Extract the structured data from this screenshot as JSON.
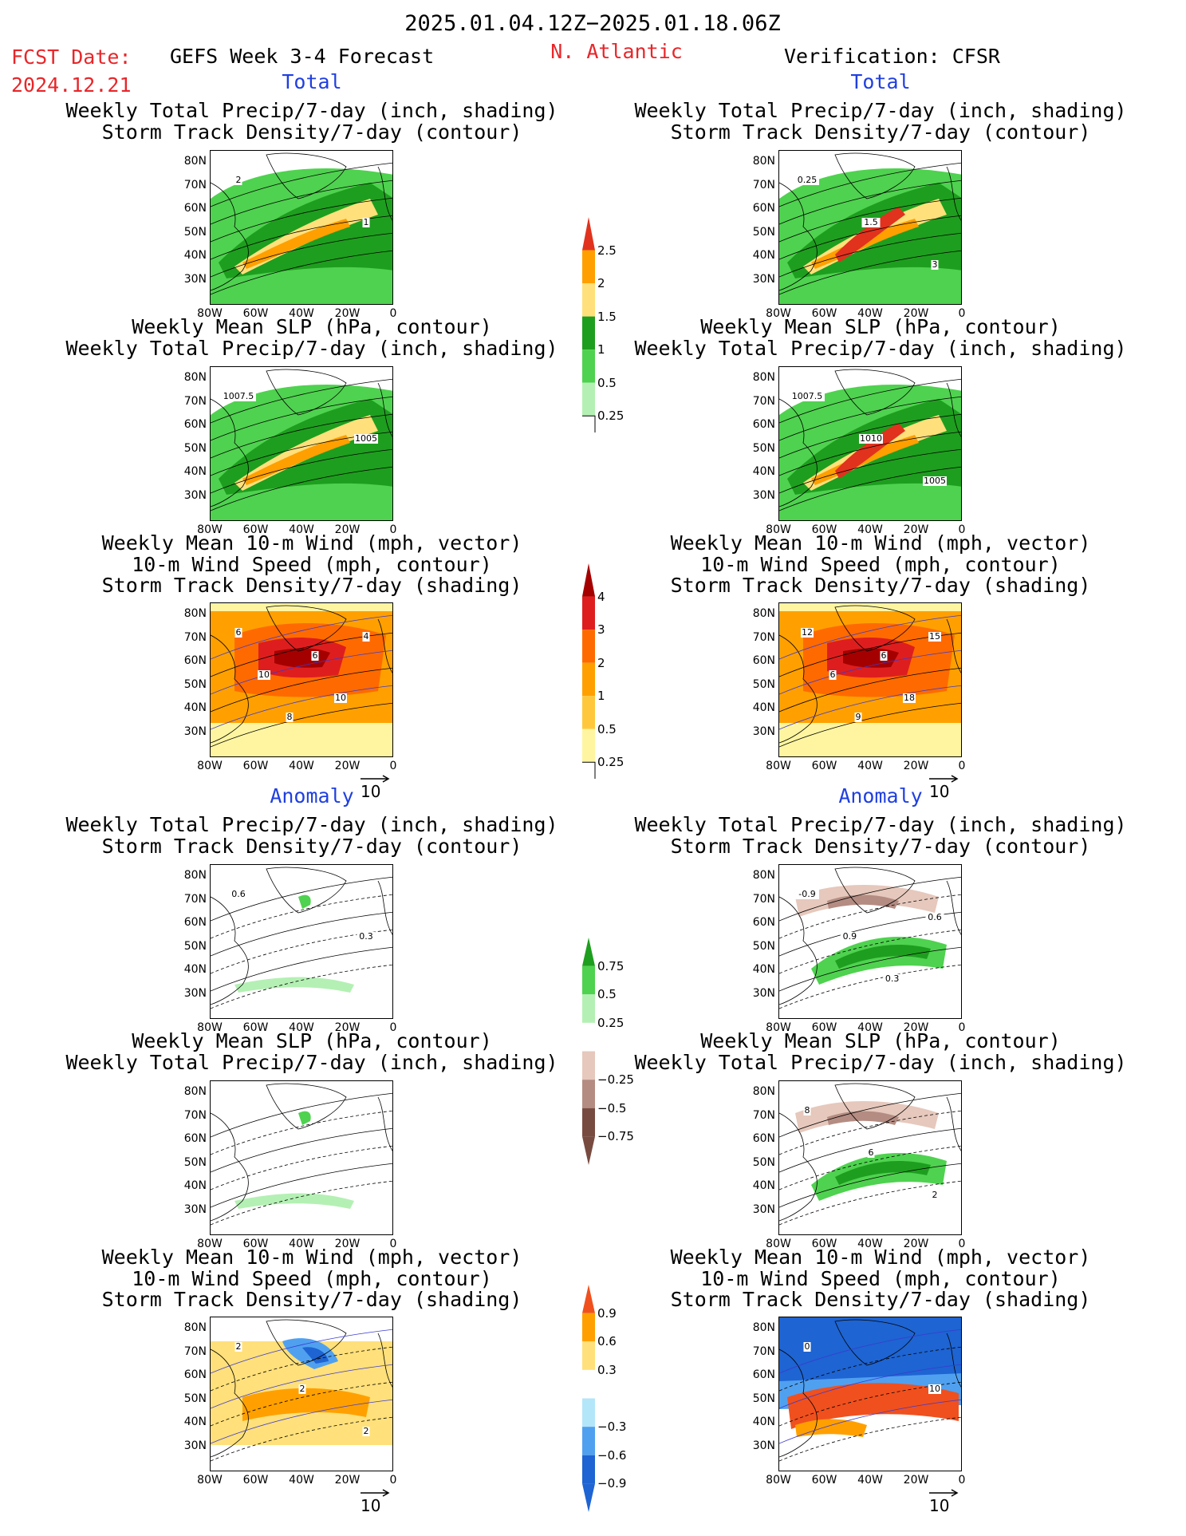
{
  "header": {
    "period": "2025.01.04.12Z−2025.01.18.06Z",
    "fcst_label": "FCST Date:",
    "fcst_date": "2024.12.21",
    "model": "GEFS Week 3-4 Forecast",
    "region": "N. Atlantic",
    "verification": "Verification: CFSR"
  },
  "sections": {
    "total": "Total",
    "anomaly": "Anomaly"
  },
  "panel_titles": {
    "precip_track": [
      "Weekly Total Precip/7-day (inch, shading)",
      "Storm Track Density/7-day (contour)"
    ],
    "slp_precip": [
      "Weekly Mean SLP (hPa, contour)",
      "Weekly Total Precip/7-day (inch, shading)"
    ],
    "wind_track": [
      "Weekly Mean 10-m Wind (mph, vector)",
      "10-m Wind Speed (mph, contour)",
      "Storm Track Density/7-day (shading)"
    ]
  },
  "axes": {
    "lat_ticks": [
      "80N",
      "70N",
      "60N",
      "50N",
      "40N",
      "30N"
    ],
    "lon_ticks": [
      "80W",
      "60W",
      "40W",
      "20W",
      "0"
    ]
  },
  "vector_ref": "10",
  "colorbars": {
    "precip_total": {
      "labels": [
        "2.5",
        "2",
        "1.5",
        "1",
        "0.5",
        "0.25"
      ],
      "colors": [
        "#e1321e",
        "#ff9f00",
        "#ffe07a",
        "#1e9e1e",
        "#4fd24f",
        "#b4f0b4"
      ]
    },
    "track_total": {
      "labels": [
        "4",
        "3",
        "2",
        "1",
        "0.5",
        "0.25"
      ],
      "colors": [
        "#a50000",
        "#de1e1e",
        "#ff6a00",
        "#ffa000",
        "#ffc83c",
        "#fff5a0"
      ]
    },
    "precip_anom": {
      "labels": [
        "0.75",
        "0.5",
        "0.25",
        "−0.25",
        "−0.5",
        "−0.75"
      ],
      "colors": [
        "#1e9e1e",
        "#4fd24f",
        "#b4f0b4",
        "#ffffff",
        "#e6c8bc",
        "#b48c82",
        "#784b41"
      ]
    },
    "track_anom": {
      "labels": [
        "0.9",
        "0.6",
        "0.3",
        "−0.3",
        "−0.6",
        "−0.9"
      ],
      "colors": [
        "#f0501e",
        "#ffa000",
        "#ffe07a",
        "#ffffff",
        "#b4e6fa",
        "#50a0f0",
        "#1e64d2"
      ]
    }
  },
  "contour_labels": {
    "gefs_total_precip": [
      "2",
      "1"
    ],
    "cfsr_total_precip": [
      "0.25",
      "1.5",
      "3"
    ],
    "gefs_total_slp": [
      "1007.5",
      "1005"
    ],
    "cfsr_total_slp": [
      "1007.5",
      "1010",
      "1005"
    ],
    "gefs_total_wind": [
      "6",
      "10",
      "8",
      "6",
      "10",
      "4"
    ],
    "cfsr_total_wind": [
      "12",
      "6",
      "9",
      "6",
      "18",
      "15"
    ],
    "gefs_anom_precip": [
      "0.6",
      "0.3"
    ],
    "cfsr_anom_precip": [
      "-0.9",
      "0.9",
      "0.3",
      "0.6"
    ],
    "cfsr_anom_slp": [
      "8",
      "6",
      "2"
    ],
    "gefs_anom_wind": [
      "2",
      "2",
      "2"
    ],
    "cfsr_anom_wind": [
      "0",
      "10"
    ]
  }
}
